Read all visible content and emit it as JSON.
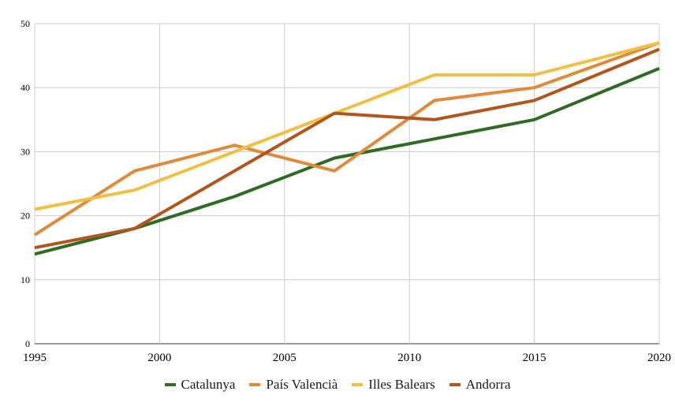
{
  "chart_data": {
    "type": "line",
    "title": "",
    "xlabel": "",
    "ylabel": "",
    "x": [
      1995,
      1999,
      2003,
      2007,
      2011,
      2015,
      2020
    ],
    "xlim": [
      1995,
      2020
    ],
    "ylim": [
      0,
      50
    ],
    "x_ticks": [
      1995,
      2000,
      2005,
      2010,
      2015,
      2020
    ],
    "y_ticks": [
      0,
      10,
      20,
      30,
      40,
      50
    ],
    "grid": true,
    "legend_position": "bottom",
    "series": [
      {
        "name": "Catalunya",
        "color": "#2e6b23",
        "values": [
          14,
          18,
          23,
          29,
          32,
          35,
          43
        ]
      },
      {
        "name": "País Valencià",
        "color": "#e08a3c",
        "values": [
          17,
          27,
          31,
          27,
          38,
          40,
          47
        ]
      },
      {
        "name": "Illes Balears",
        "color": "#f0bf45",
        "values": [
          21,
          24,
          30,
          36,
          42,
          42,
          47
        ]
      },
      {
        "name": "Andorra",
        "color": "#b0561e",
        "values": [
          15,
          18,
          27,
          36,
          35,
          38,
          46
        ]
      }
    ]
  }
}
